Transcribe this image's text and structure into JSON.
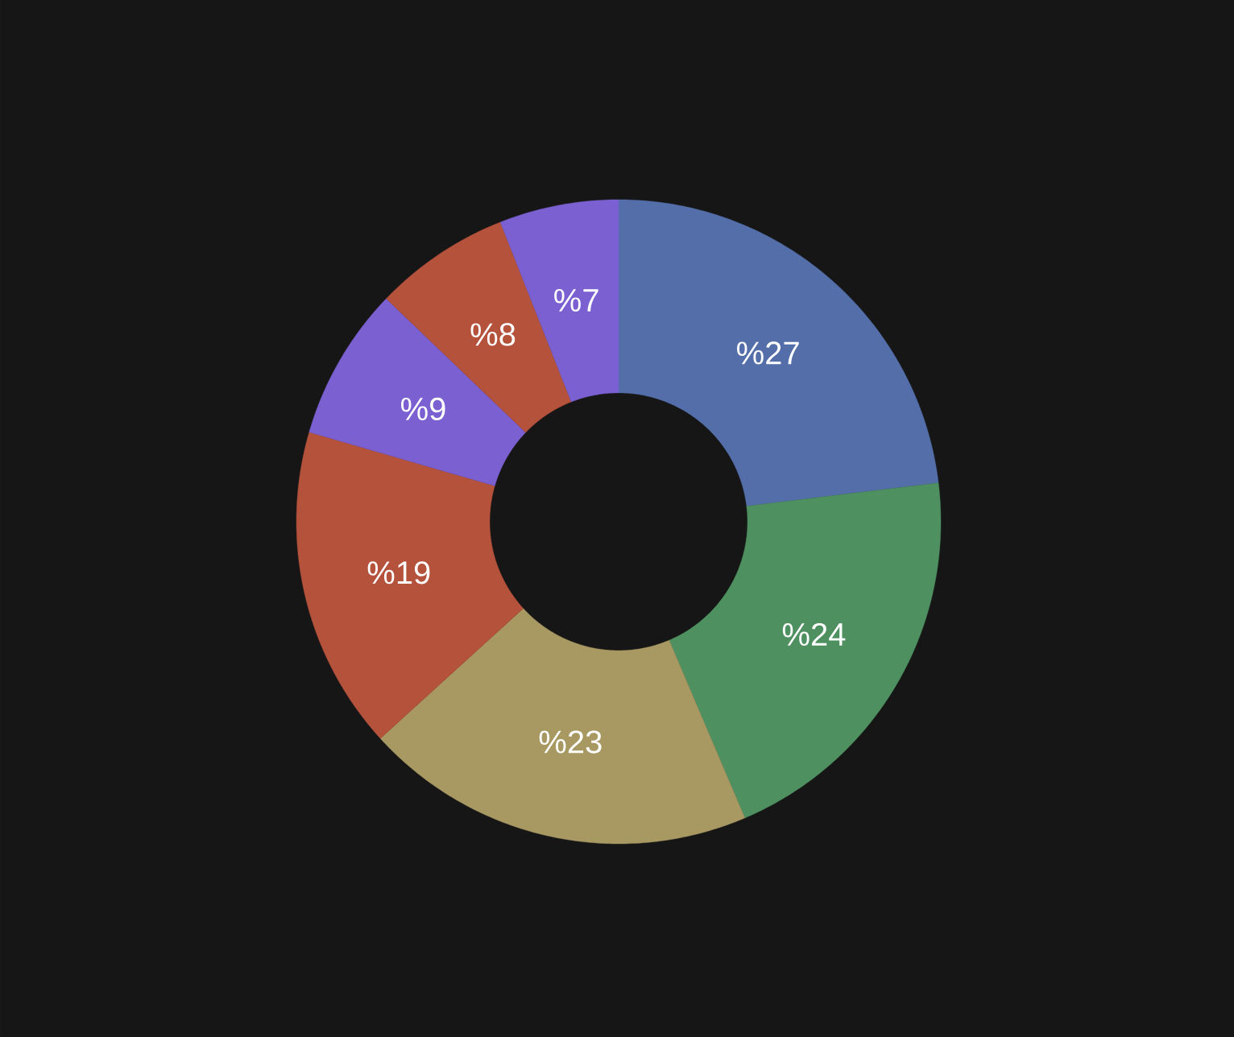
{
  "chart_data": {
    "type": "donut",
    "categories": [
      null,
      null,
      null,
      null,
      null,
      null,
      null
    ],
    "values": [
      27,
      24,
      23,
      19,
      9,
      8,
      7
    ],
    "value_labels": [
      "%27",
      "%24",
      "%23",
      "%19",
      "%9",
      "%8",
      "%7"
    ],
    "colors": [
      "#546eaa",
      "#4e9060",
      "#a89862",
      "#b4523c",
      "#7b60d2",
      "#b4523c",
      "#7b60d2"
    ]
  }
}
